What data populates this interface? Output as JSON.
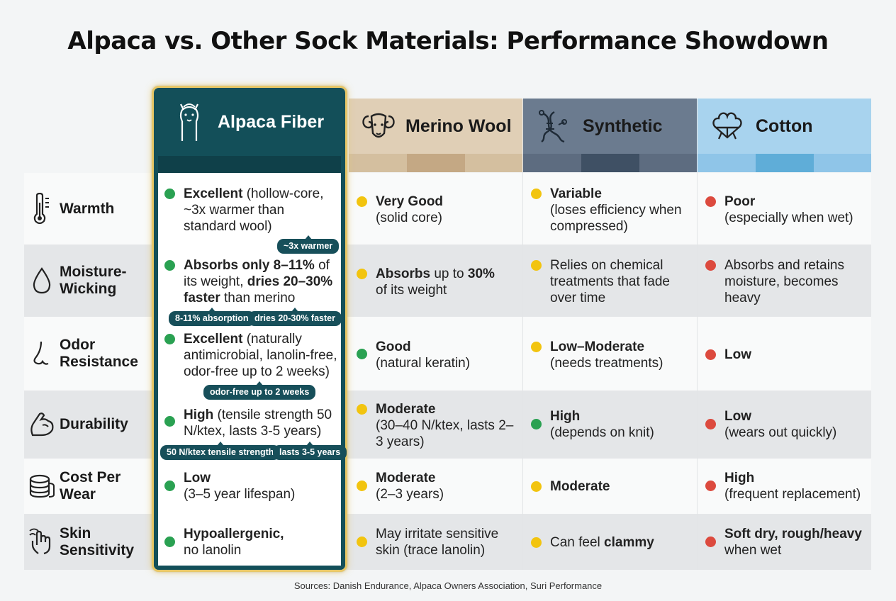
{
  "title": "Alpaca vs. Other Sock Materials: Performance Showdown",
  "sources": "Sources: Danish Endurance, Alpaca Owners Association, Suri Performance",
  "colors": {
    "alpaca_header": "#134f59",
    "merino_header": "#e0cfb6",
    "synthetic_header": "#6b7b8f",
    "cotton_header": "#a8d3ee",
    "excellent": "#2aa152",
    "moderate": "#f2c40f",
    "poor": "#dc4a3e",
    "highlight_border": "#e7c767"
  },
  "columns": [
    {
      "name": "Alpaca Fiber",
      "icon": "alpaca-icon"
    },
    {
      "name": "Merino Wool",
      "icon": "ram-icon"
    },
    {
      "name": "Synthetic",
      "icon": "molecule-icon"
    },
    {
      "name": "Cotton",
      "icon": "cotton-boll-icon"
    }
  ],
  "rows": [
    {
      "label": "Warmth",
      "icon": "thermometer-icon",
      "alpaca": {
        "rating": "green",
        "bold": "Excellent",
        "text": " (hollow-core, ~3x warmer than standard wool)",
        "callouts": [
          "~3x warmer"
        ]
      },
      "merino": {
        "rating": "yellow",
        "bold": "Very Good",
        "text": "(solid core)"
      },
      "synthetic": {
        "rating": "yellow",
        "bold": "Variable",
        "text": "(loses efficiency when compressed)"
      },
      "cotton": {
        "rating": "red",
        "bold": "Poor",
        "text": "(especially when wet)"
      }
    },
    {
      "label": "Moisture-Wicking",
      "label_lines": [
        "Moisture-",
        "Wicking"
      ],
      "icon": "water-drop-icon",
      "alpaca": {
        "rating": "green",
        "parts": [
          "Absorbs only 8–11%",
          " of its weight, ",
          "dries 20–30% faster",
          " than merino"
        ],
        "callouts": [
          "8-11% absorption",
          "dries 20-30% faster"
        ]
      },
      "merino": {
        "rating": "yellow",
        "parts": [
          "Absorbs",
          " up to ",
          "30%",
          " of its weight"
        ]
      },
      "synthetic": {
        "rating": "yellow",
        "text": "Relies on chemical treatments that fade over time"
      },
      "cotton": {
        "rating": "red",
        "text": "Absorbs and retains moisture, becomes heavy"
      }
    },
    {
      "label": "Odor Resistance",
      "label_lines": [
        "Odor",
        "Resistance"
      ],
      "icon": "nose-icon",
      "alpaca": {
        "rating": "green",
        "bold": "Excellent",
        "text": " (naturally antimicrobial, lanolin-free, odor-free up to 2 weeks)",
        "callouts": [
          "odor-free up to 2 weeks"
        ]
      },
      "merino": {
        "rating": "green",
        "bold": "Good",
        "text": "(natural keratin)"
      },
      "synthetic": {
        "rating": "yellow",
        "bold": "Low–Moderate",
        "text": "(needs treatments)"
      },
      "cotton": {
        "rating": "red",
        "bold": "Low",
        "text": ""
      }
    },
    {
      "label": "Durability",
      "icon": "flexed-arm-icon",
      "alpaca": {
        "rating": "green",
        "bold": "High",
        "text": " (tensile strength 50 N/ktex, lasts 3-5 years)",
        "callouts": [
          "50 N/ktex tensile strength",
          "lasts 3-5 years"
        ]
      },
      "merino": {
        "rating": "yellow",
        "bold": "Moderate",
        "text": "(30–40 N/ktex, lasts 2–3 years)"
      },
      "synthetic": {
        "rating": "green",
        "bold": "High",
        "text": "(depends on knit)"
      },
      "cotton": {
        "rating": "red",
        "bold": "Low",
        "text": "(wears out quickly)"
      }
    },
    {
      "label": "Cost Per Wear",
      "label_lines": [
        "Cost Per",
        "Wear"
      ],
      "icon": "coin-stack-icon",
      "alpaca": {
        "rating": "green",
        "bold": "Low",
        "text": "(3–5 year lifespan)"
      },
      "merino": {
        "rating": "yellow",
        "bold": "Moderate",
        "text": "(2–3 years)"
      },
      "synthetic": {
        "rating": "yellow",
        "bold": "Moderate",
        "text": ""
      },
      "cotton": {
        "rating": "red",
        "bold": "High",
        "text": "(frequent replacement)"
      }
    },
    {
      "label": "Skin Sensitivity",
      "label_lines": [
        "Skin",
        "Sensitivity"
      ],
      "icon": "hand-touch-icon",
      "alpaca": {
        "rating": "green",
        "bold": "Hypoallergenic,",
        "text": "no lanolin"
      },
      "merino": {
        "rating": "yellow",
        "text": "May irritate sensitive skin (trace lanolin)"
      },
      "synthetic": {
        "rating": "yellow",
        "parts": [
          "Can feel ",
          "clammy"
        ]
      },
      "cotton": {
        "rating": "red",
        "bold": "Soft dry, rough/heavy",
        "text": "when wet"
      }
    }
  ]
}
